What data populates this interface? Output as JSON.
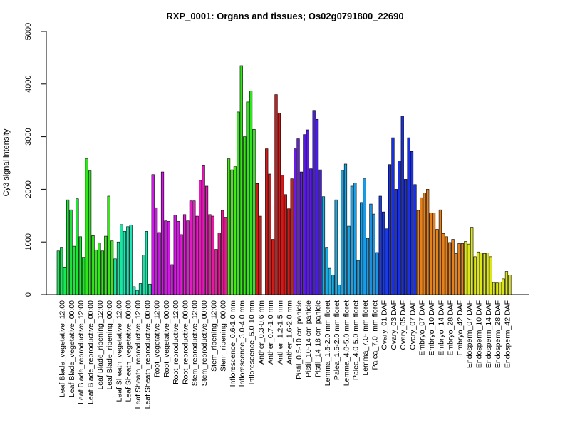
{
  "chart_data": {
    "type": "bar",
    "title": "RXP_0001: Organs and tissues; Os02g0791800_22690",
    "ylabel": "Cy3 signal intensity",
    "xlabel": "",
    "ylim": [
      0,
      5000
    ],
    "yticks": [
      0,
      1000,
      2000,
      3000,
      4000,
      5000
    ],
    "grid": false,
    "groups": [
      {
        "label": "Leaf Blade_vegetative_12:00",
        "color": "#19e65a",
        "values": [
          830,
          900,
          510
        ]
      },
      {
        "label": "Leaf Blade_vegetative_00:00",
        "color": "#19e63a",
        "values": [
          1800,
          1610,
          920
        ]
      },
      {
        "label": "Leaf Blade_reproductive_12:00",
        "color": "#19e633",
        "values": [
          1820,
          1100,
          710
        ]
      },
      {
        "label": "Leaf Blade_reproductive_00:00",
        "color": "#2ee619",
        "values": [
          2580,
          2350,
          1120
        ]
      },
      {
        "label": "Leaf Blade_ripening_12:00",
        "color": "#33e619",
        "values": [
          850,
          980,
          830
        ]
      },
      {
        "label": "Leaf Blade_ripening_00:00",
        "color": "#3ae619",
        "values": [
          1110,
          1870,
          1020
        ]
      },
      {
        "label": "Leaf Sheath_vegetative_12:00",
        "color": "#19e6a0",
        "values": [
          680,
          1000,
          1330
        ]
      },
      {
        "label": "Leaf Sheath_vegetative_00:00",
        "color": "#19e6b4",
        "values": [
          1200,
          1290,
          1320
        ]
      },
      {
        "label": "Leaf Sheath_reproductive_12:00",
        "color": "#19e6b4",
        "values": [
          150,
          80,
          210
        ]
      },
      {
        "label": "Leaf Sheath_reproductive_00:00",
        "color": "#19e6a8",
        "values": [
          750,
          1200,
          200
        ]
      },
      {
        "label": "Root_vegetative_12:00",
        "color": "#cc19e6",
        "values": [
          2280,
          1650,
          1180
        ]
      },
      {
        "label": "Root_vegetative_00:00",
        "color": "#d019e6",
        "values": [
          2330,
          1400,
          1390
        ]
      },
      {
        "label": "Root_reproductive_12:00",
        "color": "#d619e6",
        "values": [
          570,
          1510,
          1390
        ]
      },
      {
        "label": "Root_reproductive_00:00",
        "color": "#e619da",
        "values": [
          1140,
          1520,
          1400
        ]
      },
      {
        "label": "Stem_reproductive_12:00",
        "color": "#e619c4",
        "values": [
          1780,
          1780,
          1490
        ]
      },
      {
        "label": "Stem_reproductive_00:00",
        "color": "#e619b8",
        "values": [
          2170,
          2450,
          2060
        ]
      },
      {
        "label": "Stem_ripening_12:00",
        "color": "#e619a0",
        "values": [
          1520,
          1490,
          860
        ]
      },
      {
        "label": "Stem_ripening_00:00",
        "color": "#e61994",
        "values": [
          1170,
          1600,
          1470
        ]
      },
      {
        "label": "Inflorescence_0.6-1.0 mm",
        "color": "#47e619",
        "values": [
          2580,
          2370,
          2430
        ]
      },
      {
        "label": "Inflorescence_3.0-4.0 mm",
        "color": "#33e619",
        "values": [
          3470,
          4350,
          3000
        ]
      },
      {
        "label": "Inflorescence_5.0-10 mm",
        "color": "#2ee619",
        "values": [
          3660,
          3870,
          3140
        ]
      },
      {
        "label": "Anther_0.3-0.6 mm",
        "color": "#d11a1a",
        "values": [
          2110,
          1490
        ]
      },
      {
        "label": "Anther_0.7-1.0 mm",
        "color": "#d11a1a",
        "values": [
          2770,
          2290,
          1050
        ]
      },
      {
        "label": "Anther_1.2-1.5 mm",
        "color": "#d11a1a",
        "values": [
          3800,
          3450,
          2270
        ]
      },
      {
        "label": "Anther_1.6-2.0 mm",
        "color": "#d11a1a",
        "values": [
          1900,
          1630,
          2200
        ]
      },
      {
        "label": "Pistil_0.5-10 cm panicle",
        "color": "#6a1ae6",
        "values": [
          2770,
          2960,
          2330
        ]
      },
      {
        "label": "Pistil_10-14 cm panicle",
        "color": "#5a1ae6",
        "values": [
          3040,
          3130,
          2390
        ]
      },
      {
        "label": "Pistil_14-18 cm panicle",
        "color": "#4a1ae6",
        "values": [
          3500,
          3330,
          2370
        ]
      },
      {
        "label": "Lemma_1.5-2.0 mm floret",
        "color": "#19b0e6",
        "values": [
          1860,
          900,
          500
        ]
      },
      {
        "label": "Palea_1.5-2.0 mm floret",
        "color": "#19aae6",
        "values": [
          370,
          1800,
          180
        ]
      },
      {
        "label": "Lemma_4.0-5.0 mm floret",
        "color": "#19a4e6",
        "values": [
          2360,
          2480,
          1300
        ]
      },
      {
        "label": "Palea_4.0-5.0 mm floret",
        "color": "#19a0e6",
        "values": [
          2060,
          2120,
          650
        ]
      },
      {
        "label": "Lemma_7.0- mm floret",
        "color": "#199ce6",
        "values": [
          1750,
          2200,
          1070
        ]
      },
      {
        "label": "Palea_7.0- mm floret",
        "color": "#1994e6",
        "values": [
          1720,
          1530,
          800
        ]
      },
      {
        "label": "Ovary_01 DAF",
        "color": "#1a3be6",
        "values": [
          1870,
          1570,
          1250
        ]
      },
      {
        "label": "Ovary_03 DAF",
        "color": "#1a30e6",
        "values": [
          2470,
          2980,
          2000
        ]
      },
      {
        "label": "Ovary_05 DAF",
        "color": "#1a30e6",
        "values": [
          2540,
          3390,
          2190
        ]
      },
      {
        "label": "Ovary_07 DAF",
        "color": "#1a30e6",
        "values": [
          2980,
          2720,
          2090
        ]
      },
      {
        "label": "Embryo_07 DAF",
        "color": "#e6801a",
        "values": [
          1600,
          1840,
          1930
        ]
      },
      {
        "label": "Embryo_10 DAF",
        "color": "#e6801a",
        "values": [
          2000,
          1550,
          1550
        ]
      },
      {
        "label": "Embryo_14 DAF",
        "color": "#e6801a",
        "values": [
          1240,
          1610,
          1160
        ]
      },
      {
        "label": "Embryo_28 DAF",
        "color": "#e6801a",
        "values": [
          1100,
          990,
          1050
        ]
      },
      {
        "label": "Embryo_42 DAF",
        "color": "#e6801a",
        "values": [
          780,
          970,
          970
        ]
      },
      {
        "label": "Endosperm_07 DAF",
        "color": "#dde619",
        "values": [
          1010,
          960,
          1280
        ]
      },
      {
        "label": "Endosperm_10 DAF",
        "color": "#dde619",
        "values": [
          720,
          810,
          790
        ]
      },
      {
        "label": "Endosperm_14 DAF",
        "color": "#dde619",
        "values": [
          780,
          790,
          720
        ]
      },
      {
        "label": "Endosperm_28 DAF",
        "color": "#dde619",
        "values": [
          230,
          220,
          240
        ]
      },
      {
        "label": "Endosperm_42 DAF",
        "color": "#dde619",
        "values": [
          300,
          440,
          370
        ]
      }
    ]
  }
}
